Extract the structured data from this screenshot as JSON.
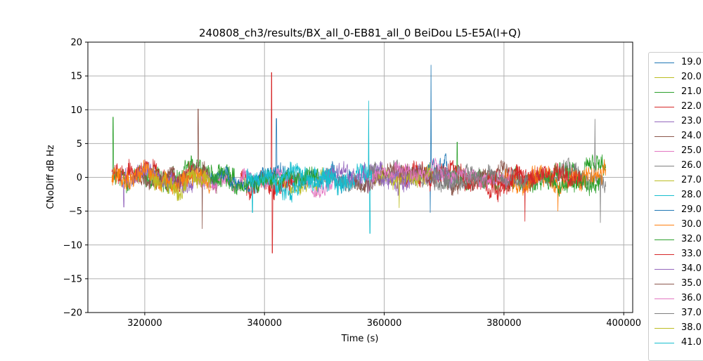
{
  "chart_data": {
    "type": "line",
    "title": "240808_ch3/results/BX_all_0-EB81_all_0 BeiDou L5-E5A(I+Q)",
    "xlabel": "Time (s)",
    "ylabel": "CNoDiff dB Hz",
    "xlim": [
      310500,
      401500
    ],
    "ylim": [
      -20,
      20
    ],
    "x_ticks": [
      320000,
      340000,
      360000,
      380000,
      400000
    ],
    "y_ticks": [
      -20,
      -15,
      -10,
      -5,
      0,
      5,
      10,
      15,
      20
    ],
    "grid": true,
    "legend_placement": "right, outside plot",
    "series": [
      {
        "name": "19.0",
        "color": "#1f77b4",
        "segments": [
          [
            341000,
            355000
          ],
          [
            363500,
            370500
          ]
        ],
        "amp": 1.2,
        "spikes": [
          [
            342000,
            8.7
          ],
          [
            367800,
            16.6
          ],
          [
            367700,
            -5.2
          ]
        ]
      },
      {
        "name": "20.0",
        "color": "#bcbd22",
        "segments": [
          [
            343000,
            351000
          ]
        ],
        "amp": 0.9,
        "spikes": []
      },
      {
        "name": "21.0",
        "color": "#2ca02c",
        "segments": [
          [
            314500,
            335000
          ],
          [
            370000,
            397000
          ]
        ],
        "amp": 1.3,
        "spikes": [
          [
            314700,
            8.9
          ],
          [
            372200,
            5.2
          ]
        ]
      },
      {
        "name": "22.0",
        "color": "#d62728",
        "segments": [
          [
            314500,
            328000
          ],
          [
            336000,
            345000
          ],
          [
            362000,
            385000
          ]
        ],
        "amp": 1.4,
        "spikes": [
          [
            341200,
            15.5
          ],
          [
            341300,
            -11.2
          ],
          [
            383500,
            -6.5
          ]
        ]
      },
      {
        "name": "23.0",
        "color": "#9467bd",
        "segments": [
          [
            316000,
            330000
          ],
          [
            356000,
            372000
          ]
        ],
        "amp": 1.1,
        "spikes": [
          [
            316500,
            -4.4
          ]
        ]
      },
      {
        "name": "24.0",
        "color": "#8c564b",
        "segments": [
          [
            319000,
            332000
          ],
          [
            370000,
            381000
          ]
        ],
        "amp": 1.0,
        "spikes": [
          [
            328900,
            10.1
          ],
          [
            329600,
            -7.6
          ]
        ]
      },
      {
        "name": "25.0",
        "color": "#e377c2",
        "segments": [
          [
            328000,
            352000
          ]
        ],
        "amp": 0.9,
        "spikes": []
      },
      {
        "name": "26.0",
        "color": "#7f7f7f",
        "segments": [
          [
            350000,
            376000
          ],
          [
            385000,
            397000
          ]
        ],
        "amp": 1.1,
        "spikes": [
          [
            395200,
            8.6
          ],
          [
            396100,
            -6.7
          ]
        ]
      },
      {
        "name": "27.0",
        "color": "#bcbd22",
        "segments": [
          [
            358000,
            368000
          ]
        ],
        "amp": 1.2,
        "spikes": [
          [
            362500,
            -4.5
          ]
        ]
      },
      {
        "name": "28.0",
        "color": "#17becf",
        "segments": [
          [
            337000,
            358000
          ]
        ],
        "amp": 1.3,
        "spikes": [
          [
            357400,
            11.3
          ],
          [
            357600,
            -8.3
          ]
        ]
      },
      {
        "name": "29.0",
        "color": "#1f77b4",
        "segments": [
          [
            331000,
            342000
          ]
        ],
        "amp": 0.8,
        "spikes": []
      },
      {
        "name": "30.0",
        "color": "#ff7f0e",
        "segments": [
          [
            314500,
            331000
          ],
          [
            380000,
            397000
          ]
        ],
        "amp": 1.3,
        "spikes": [
          [
            389000,
            -5.0
          ]
        ]
      },
      {
        "name": "32.0",
        "color": "#2ca02c",
        "segments": [
          [
            331000,
            349000
          ],
          [
            386000,
            396000
          ]
        ],
        "amp": 1.0,
        "spikes": []
      },
      {
        "name": "33.0",
        "color": "#d62728",
        "segments": [
          [
            377000,
            393000
          ]
        ],
        "amp": 1.3,
        "spikes": []
      },
      {
        "name": "34.0",
        "color": "#9467bd",
        "segments": [
          [
            350000,
            364000
          ]
        ],
        "amp": 1.0,
        "spikes": []
      },
      {
        "name": "35.0",
        "color": "#8c564b",
        "segments": [
          [
            355000,
            368000
          ]
        ],
        "amp": 0.9,
        "spikes": []
      },
      {
        "name": "36.0",
        "color": "#e377c2",
        "segments": [
          [
            358000,
            381000
          ]
        ],
        "amp": 0.8,
        "spikes": []
      },
      {
        "name": "37.0",
        "color": "#7f7f7f",
        "segments": [
          [
            368000,
            384000
          ]
        ],
        "amp": 1.0,
        "spikes": []
      },
      {
        "name": "38.0",
        "color": "#bcbd22",
        "segments": [
          [
            321000,
            331000
          ]
        ],
        "amp": 1.1,
        "spikes": []
      },
      {
        "name": "41.0",
        "color": "#17becf",
        "segments": [
          [
            337000,
            352000
          ]
        ],
        "amp": 1.2,
        "spikes": [
          [
            338000,
            -5.2
          ]
        ]
      }
    ]
  }
}
